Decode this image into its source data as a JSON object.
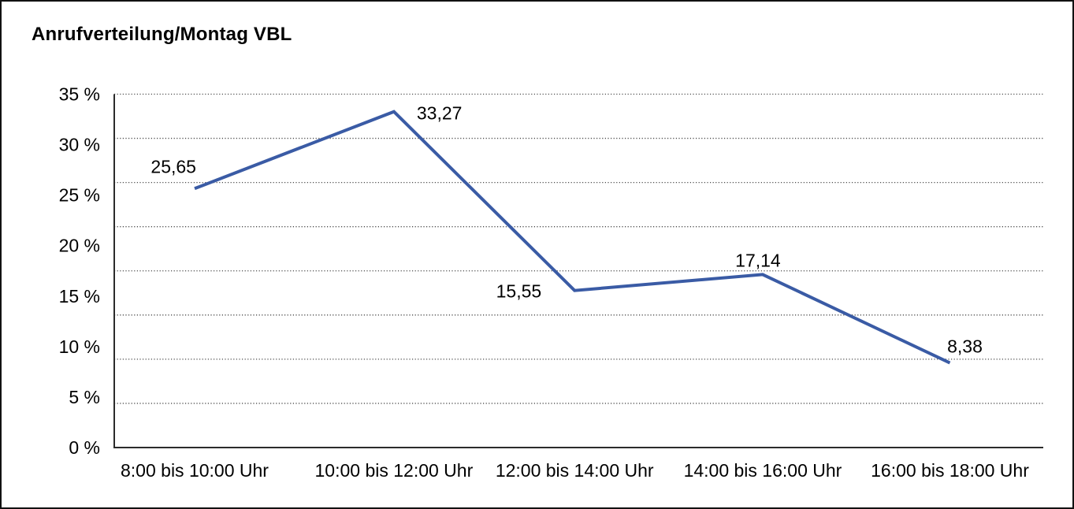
{
  "chart_data": {
    "type": "line",
    "title": "Anrufverteilung/Montag VBL",
    "categories": [
      "8:00 bis 10:00 Uhr",
      "10:00 bis 12:00 Uhr",
      "12:00 bis 14:00 Uhr",
      "14:00 bis 16:00 Uhr",
      "16:00 bis 18:00 Uhr"
    ],
    "values": [
      25.65,
      33.27,
      15.55,
      17.14,
      8.38
    ],
    "data_labels": [
      "25,65",
      "33,27",
      "15,55",
      "17,14",
      "8,38"
    ],
    "xlabel": "",
    "ylabel": "",
    "y_tick_labels": [
      "0 %",
      "5 %",
      "10 %",
      "15 %",
      "20 %",
      "25 %",
      "30 %",
      "35 %"
    ],
    "y_tick_step": 5,
    "ylim": [
      0,
      35
    ],
    "gridlines": {
      "orientation": "horizontal",
      "style": "dotted",
      "count": 9
    },
    "legend_position": "none",
    "colors": {
      "line": "#3A5BA5",
      "grid": "#4a4a4a",
      "axis": "#2b2b2b",
      "text": "#000000",
      "background": "#ffffff",
      "border": "#111111"
    }
  }
}
